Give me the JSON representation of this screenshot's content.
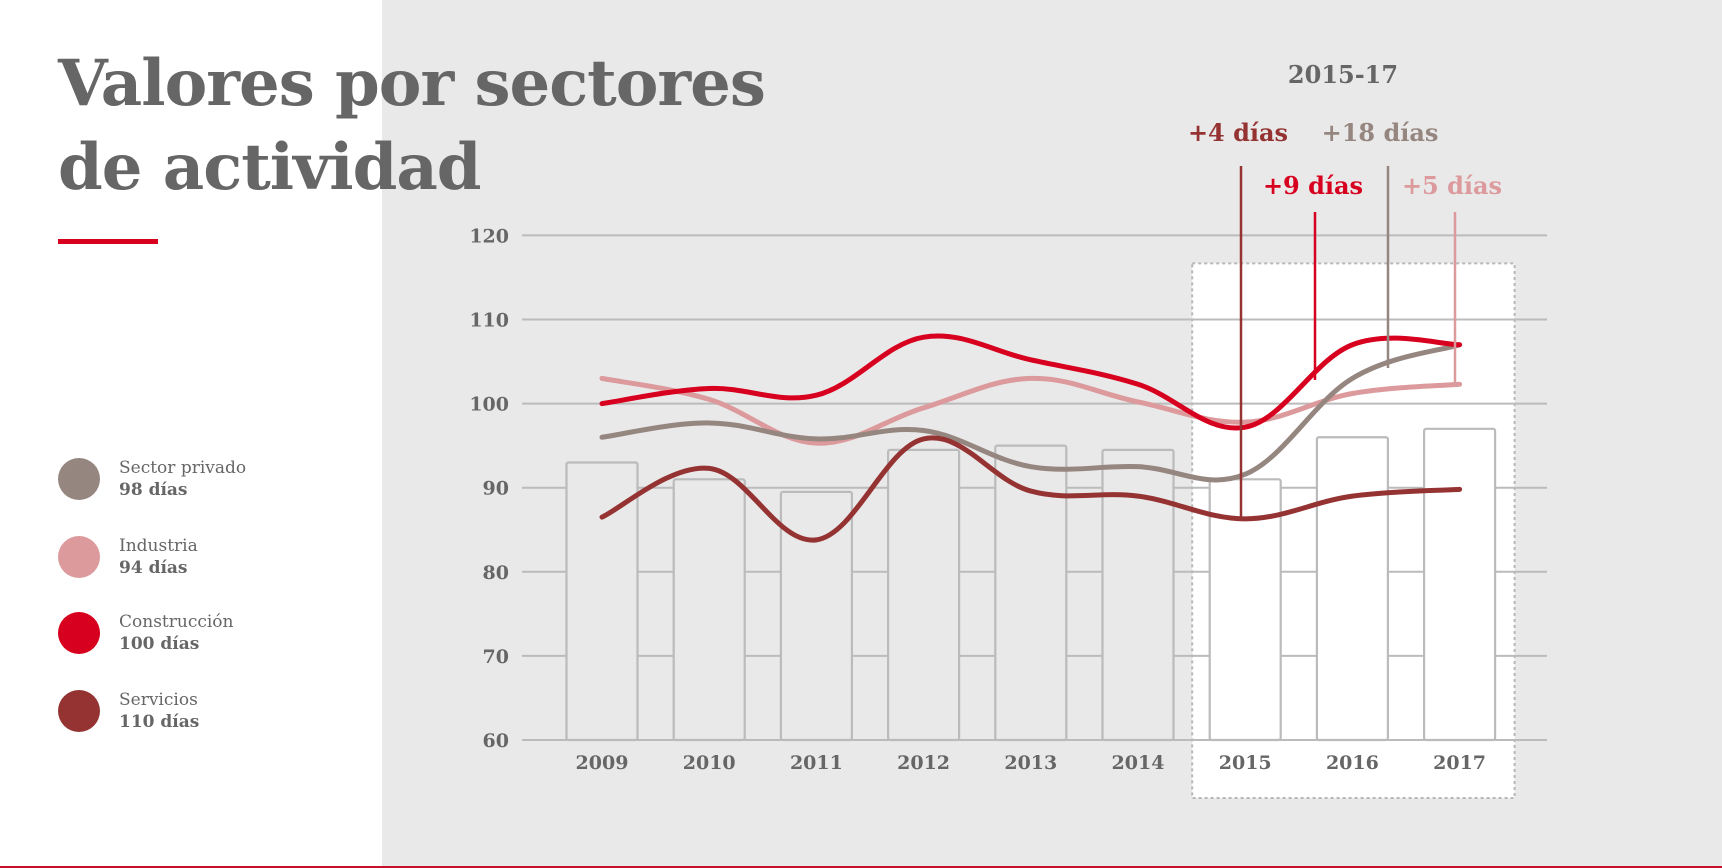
{
  "title_lines": [
    "Valores por sectores",
    "de actividad"
  ],
  "colors": {
    "sector_privado": "#968680",
    "industria": "#dc9a9c",
    "construccion": "#d7001e",
    "servicios": "#953333",
    "grid": "#bbbbbb",
    "text": "#666666"
  },
  "legend": [
    {
      "name": "Sector privado",
      "value": "98 días"
    },
    {
      "name": "Industria",
      "value": "94 días"
    },
    {
      "name": "Construcción",
      "value": "100 días"
    },
    {
      "name": "Servicios",
      "value": "110 días"
    }
  ],
  "chart_data": {
    "type": "line",
    "title": "",
    "xlabel": "",
    "ylabel": "",
    "x": [
      "2009",
      "2010",
      "2011",
      "2012",
      "2013",
      "2014",
      "2015",
      "2016",
      "2017"
    ],
    "ylim": [
      60,
      120
    ],
    "yticks": [
      60,
      70,
      80,
      90,
      100,
      110,
      120
    ],
    "grid": true,
    "bars": {
      "values": [
        93,
        91,
        89.5,
        94.5,
        95,
        94.5,
        91,
        96,
        97
      ]
    },
    "series": [
      {
        "name": "Sector privado",
        "color_key": "sector_privado",
        "values": [
          96,
          97.7,
          95.8,
          96.8,
          92.5,
          92.5,
          91.6,
          103,
          107
        ]
      },
      {
        "name": "Industria",
        "color_key": "industria",
        "values": [
          103,
          100.5,
          95.3,
          99.5,
          103,
          100.2,
          97.8,
          101.2,
          102.3
        ]
      },
      {
        "name": "Construcción",
        "color_key": "construccion",
        "values": [
          100,
          101.8,
          101,
          107.9,
          105.2,
          102.3,
          97.2,
          107,
          107
        ]
      },
      {
        "name": "Servicios",
        "color_key": "servicios",
        "values": [
          86.5,
          92.3,
          83.8,
          95.8,
          89.6,
          89,
          86.3,
          89,
          89.8
        ]
      }
    ],
    "highlight": {
      "label": "2015-17",
      "from": "2015",
      "to": "2017"
    },
    "annotations": [
      {
        "text": "+4 días",
        "color_key": "servicios"
      },
      {
        "text": "+9 días",
        "color_key": "construccion"
      },
      {
        "text": "+18 días",
        "color_key": "sector_privado"
      },
      {
        "text": "+5 días",
        "color_key": "industria"
      }
    ]
  }
}
